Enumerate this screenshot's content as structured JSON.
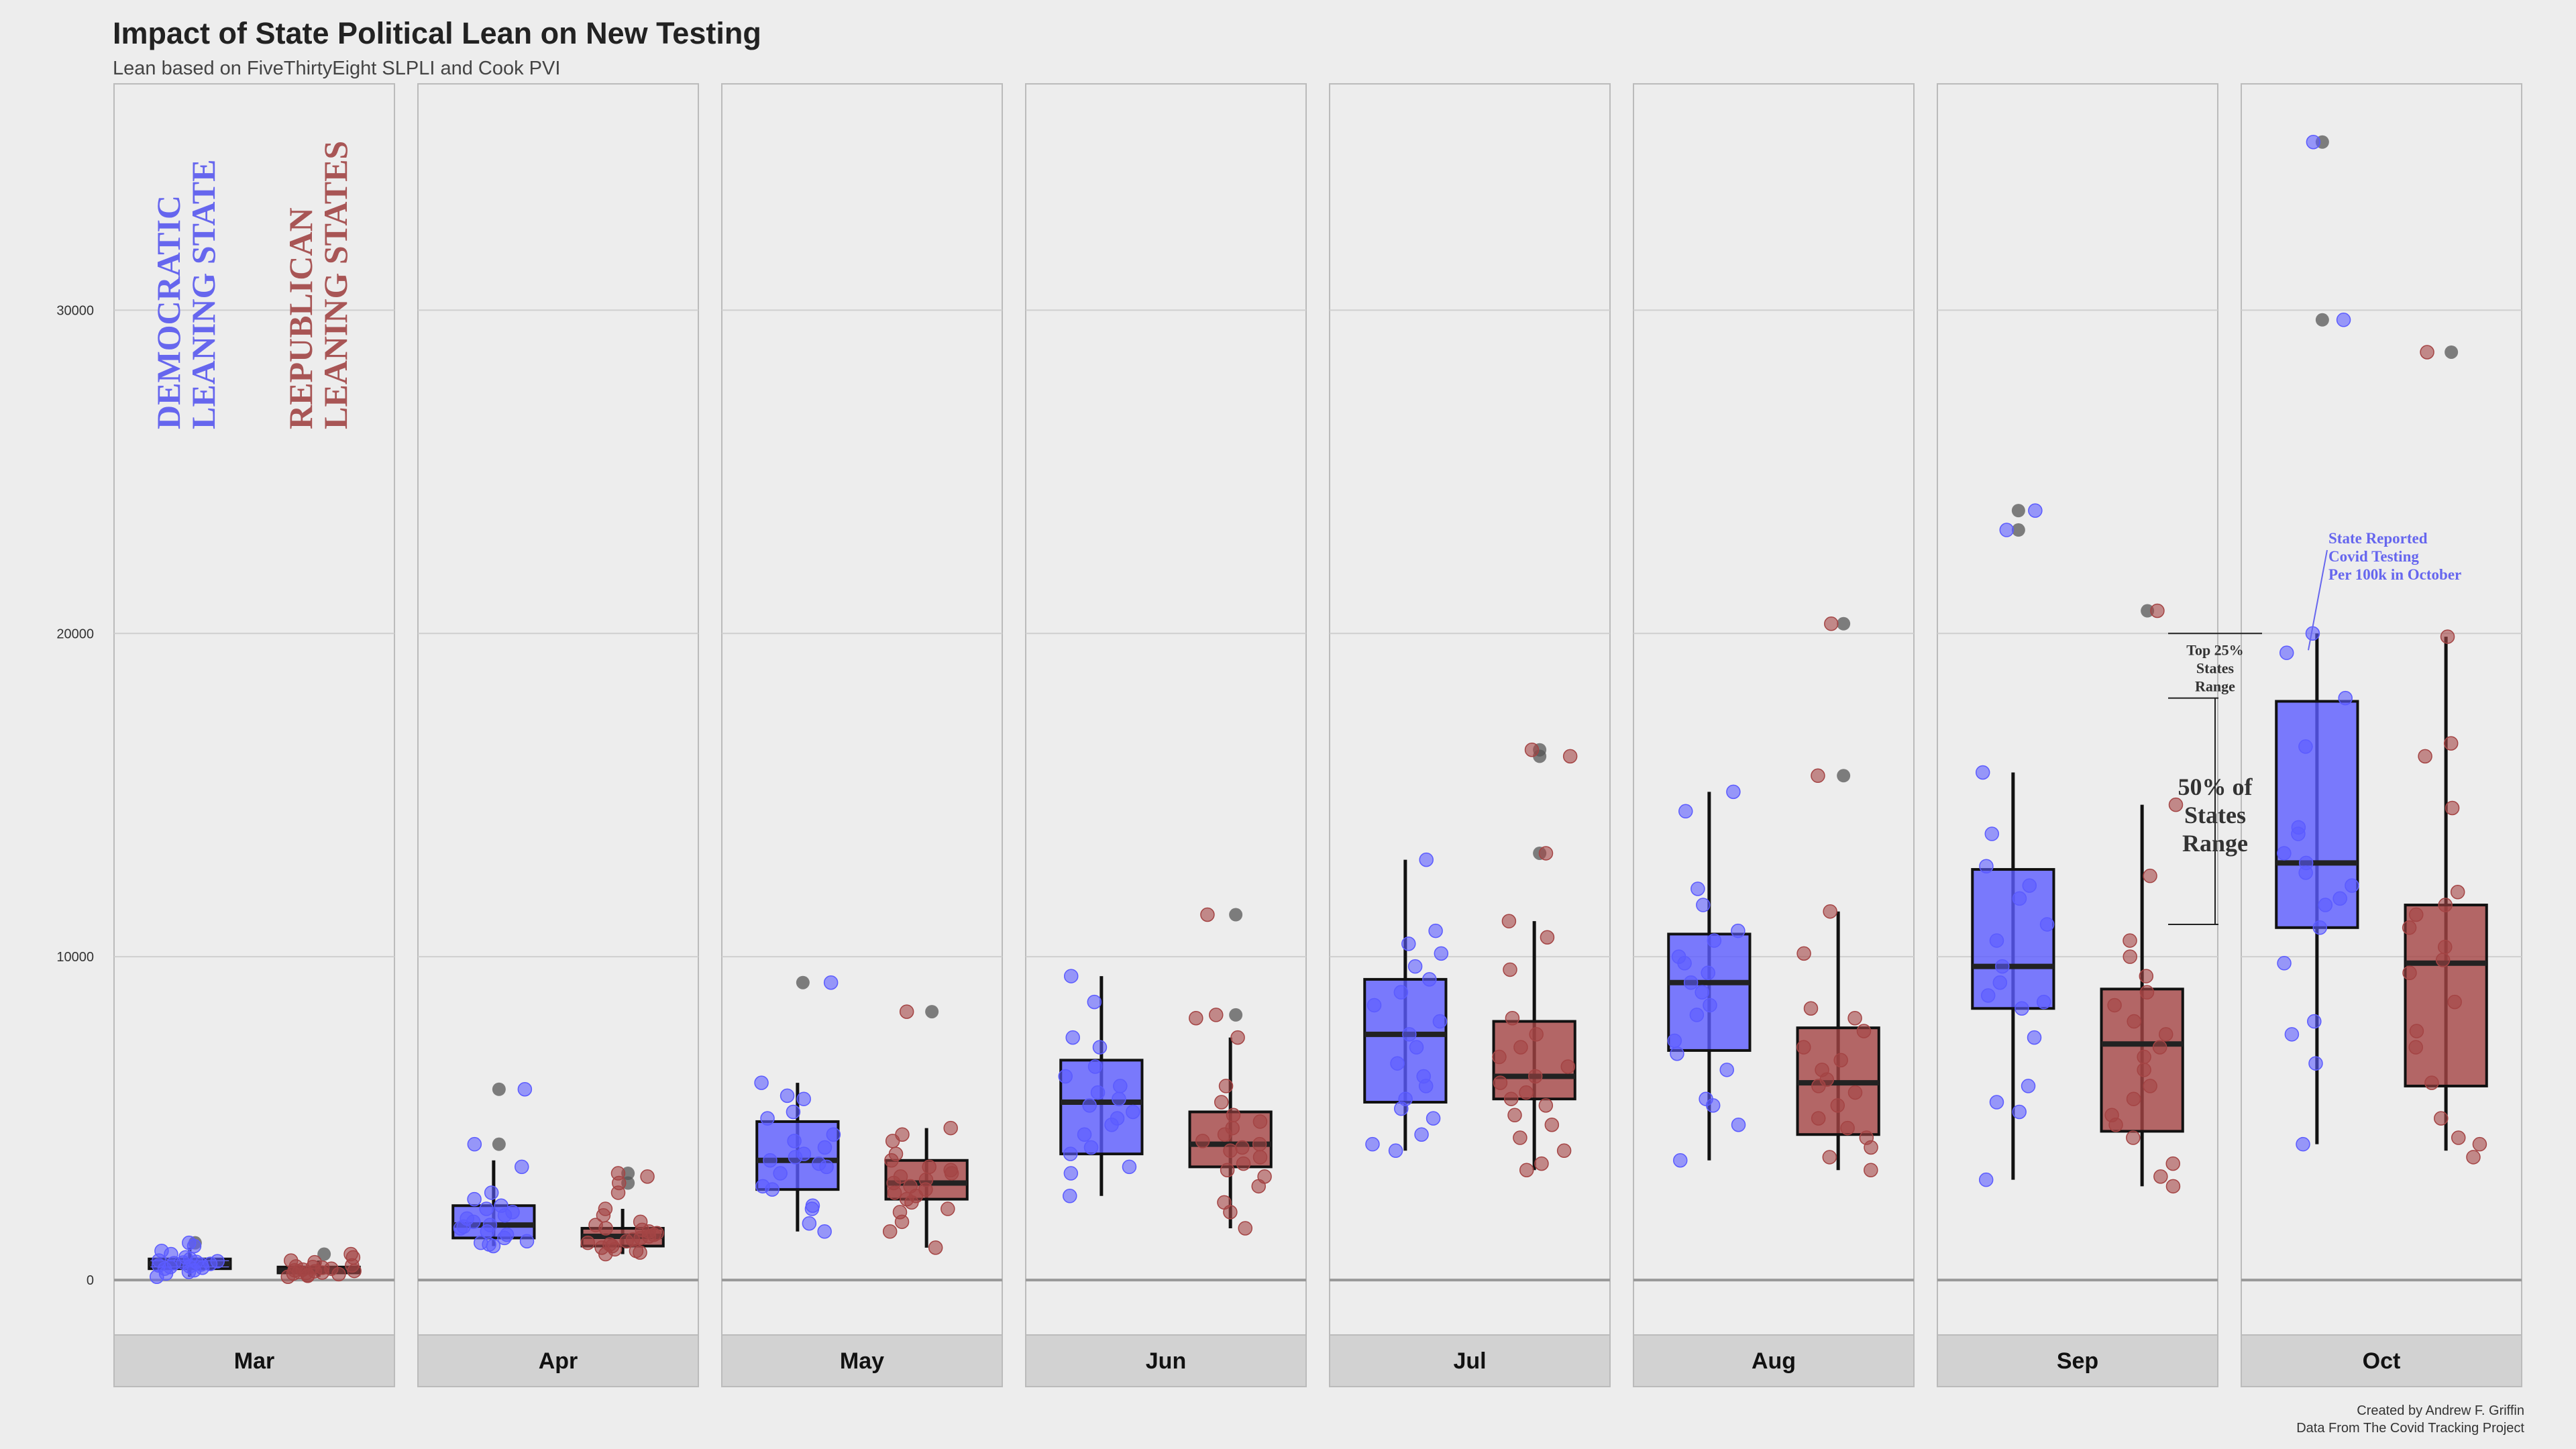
{
  "title": "Impact of State Political Lean on New Testing",
  "subtitle": "Lean based on FiveThirtyEight SLPLI and Cook PVI",
  "caption": {
    "line1": "Created by Andrew F. Griffin",
    "line2": "Data From The Covid Tracking Project"
  },
  "colors": {
    "democratic": "#5b5bff",
    "republican": "#a44444",
    "dem_label": "#6666ee",
    "rep_label": "#a85555",
    "outlier": "#555555",
    "panel_bg": "#ededed",
    "strip_bg": "#d2d2d2",
    "grid": "#cfcfcf"
  },
  "panel_labels": {
    "democratic": [
      "DEMOCRATIC",
      "LEANING STATE"
    ],
    "republican": [
      "REPUBLICAN",
      "LEANING STATES"
    ]
  },
  "annotations": {
    "oct_testing": [
      "State Reported",
      "Covid Testing",
      "Per 100k in October"
    ],
    "top25": [
      "Top 25%",
      "States",
      "Range"
    ],
    "fifty": [
      "50% of",
      "States",
      "Range"
    ]
  },
  "chart_data": {
    "type": "boxplot",
    "title": "Impact of State Political Lean on New Testing",
    "xlabel": "",
    "ylabel": "",
    "ylim": [
      -1700,
      37000
    ],
    "yticks": [
      0,
      10000,
      20000,
      30000
    ],
    "ytick_labels": [
      "0",
      "10000",
      "20000",
      "30000"
    ],
    "grid": true,
    "facets": [
      "Mar",
      "Apr",
      "May",
      "Jun",
      "Jul",
      "Aug",
      "Sep",
      "Oct"
    ],
    "groups": [
      "Democratic Leaning",
      "Republican Leaning"
    ],
    "series": [
      {
        "month": "Mar",
        "dem": {
          "min": 100,
          "q1": 350,
          "median": 500,
          "q3": 650,
          "max": 1000,
          "outliers": [
            1150
          ],
          "points": [
            1150,
            1050,
            900,
            800,
            700,
            650,
            600,
            580,
            560,
            540,
            520,
            500,
            480,
            450,
            420,
            400,
            380,
            350,
            300,
            250,
            200,
            100
          ]
        },
        "rep": {
          "min": 100,
          "q1": 220,
          "median": 300,
          "q3": 400,
          "max": 600,
          "outliers": [
            800
          ],
          "points": [
            800,
            700,
            600,
            550,
            450,
            420,
            400,
            380,
            350,
            320,
            300,
            280,
            270,
            250,
            230,
            220,
            200,
            180,
            150,
            130,
            100
          ]
        }
      },
      {
        "month": "Apr",
        "dem": {
          "min": 1050,
          "q1": 1300,
          "median": 1700,
          "q3": 2300,
          "max": 3700,
          "outliers": [
            5900,
            4200
          ],
          "points": [
            5900,
            4200,
            3500,
            2700,
            2500,
            2300,
            2200,
            2100,
            2000,
            1900,
            1800,
            1700,
            1650,
            1600,
            1500,
            1400,
            1300,
            1200,
            1150,
            1100,
            1050
          ]
        },
        "rep": {
          "min": 800,
          "q1": 1050,
          "median": 1350,
          "q3": 1600,
          "max": 2200,
          "outliers": [
            3300,
            3000
          ],
          "points": [
            3300,
            3200,
            3000,
            2700,
            2200,
            2000,
            1800,
            1700,
            1600,
            1550,
            1500,
            1450,
            1400,
            1350,
            1300,
            1250,
            1200,
            1150,
            1100,
            1050,
            1000,
            950,
            900,
            850,
            800
          ]
        }
      },
      {
        "month": "May",
        "dem": {
          "min": 1500,
          "q1": 2800,
          "median": 3700,
          "q3": 4900,
          "max": 6100,
          "outliers": [
            9200
          ],
          "points": [
            9200,
            6100,
            5700,
            5600,
            5200,
            5000,
            4500,
            4300,
            4100,
            3900,
            3800,
            3700,
            3600,
            3500,
            3300,
            2900,
            2800,
            2300,
            2200,
            1750,
            1500
          ]
        },
        "rep": {
          "min": 1000,
          "q1": 2500,
          "median": 3000,
          "q3": 3700,
          "max": 4700,
          "outliers": [
            8300
          ],
          "points": [
            8300,
            4700,
            4500,
            4300,
            3900,
            3700,
            3500,
            3400,
            3300,
            3200,
            3100,
            3000,
            2900,
            2800,
            2700,
            2600,
            2500,
            2400,
            2200,
            2100,
            1800,
            1500,
            1000
          ]
        }
      },
      {
        "month": "Jun",
        "dem": {
          "min": 2600,
          "q1": 3900,
          "median": 5500,
          "q3": 6800,
          "max": 9400,
          "outliers": [],
          "points": [
            9400,
            8600,
            7500,
            7200,
            6600,
            6300,
            6000,
            5800,
            5600,
            5400,
            5200,
            5000,
            4800,
            4500,
            4100,
            3900,
            3500,
            3300,
            2600
          ]
        },
        "rep": {
          "min": 1600,
          "q1": 3500,
          "median": 4200,
          "q3": 5200,
          "max": 7500,
          "outliers": [
            11300,
            8200
          ],
          "points": [
            11300,
            8200,
            8100,
            7500,
            6000,
            5500,
            5100,
            4900,
            4700,
            4500,
            4300,
            4200,
            4100,
            4000,
            3800,
            3600,
            3400,
            3200,
            2900,
            2400,
            2100,
            1600
          ]
        }
      },
      {
        "month": "Jul",
        "dem": {
          "min": 4000,
          "q1": 5500,
          "median": 7600,
          "q3": 9300,
          "max": 13000,
          "outliers": [],
          "points": [
            13000,
            10800,
            10400,
            10100,
            9700,
            9300,
            8900,
            8500,
            8000,
            7600,
            7200,
            6700,
            6300,
            6000,
            5600,
            5300,
            5000,
            4500,
            4200,
            4000
          ]
        },
        "rep": {
          "min": 3400,
          "q1": 5600,
          "median": 6300,
          "q3": 8000,
          "max": 11100,
          "outliers": [
            16400,
            16200,
            13200
          ],
          "points": [
            16400,
            16200,
            13200,
            11100,
            10600,
            9600,
            8100,
            7600,
            7200,
            6900,
            6600,
            6300,
            6100,
            5800,
            5600,
            5400,
            5100,
            4800,
            4400,
            4000,
            3600,
            3400
          ]
        }
      },
      {
        "month": "Aug",
        "dem": {
          "min": 3700,
          "q1": 7100,
          "median": 9200,
          "q3": 10700,
          "max": 15100,
          "outliers": [],
          "points": [
            15100,
            14500,
            12100,
            11600,
            10800,
            10500,
            10000,
            9800,
            9500,
            9200,
            8900,
            8500,
            8200,
            7400,
            7000,
            6500,
            5600,
            5400,
            4800,
            3700
          ]
        },
        "rep": {
          "min": 3400,
          "q1": 4500,
          "median": 6100,
          "q3": 7800,
          "max": 11400,
          "outliers": [
            20300,
            15600
          ],
          "points": [
            20300,
            15600,
            11400,
            10100,
            8400,
            8100,
            7700,
            7200,
            6800,
            6500,
            6200,
            6000,
            5800,
            5400,
            5000,
            4700,
            4400,
            4100,
            3800,
            3400
          ]
        }
      },
      {
        "month": "Sep",
        "dem": {
          "min": 3100,
          "q1": 8400,
          "median": 9700,
          "q3": 12700,
          "max": 15700,
          "outliers": [
            23800,
            23200
          ],
          "points": [
            23800,
            23200,
            15700,
            13800,
            12800,
            12200,
            11800,
            11000,
            10500,
            9700,
            9200,
            8800,
            8600,
            8400,
            7500,
            6000,
            5500,
            5200,
            3100
          ]
        },
        "rep": {
          "min": 2900,
          "q1": 4600,
          "median": 7300,
          "q3": 9000,
          "max": 14700,
          "outliers": [
            20700
          ],
          "points": [
            20700,
            14700,
            12500,
            10500,
            10000,
            9400,
            8900,
            8500,
            8000,
            7600,
            7200,
            6900,
            6500,
            6000,
            5600,
            5100,
            4800,
            4400,
            3600,
            3200,
            2900
          ]
        }
      },
      {
        "month": "Oct",
        "dem": {
          "min": 4200,
          "q1": 10900,
          "median": 12900,
          "q3": 17900,
          "max": 20000,
          "outliers": [
            35200,
            29700
          ],
          "points": [
            35200,
            29700,
            20000,
            19400,
            18000,
            16500,
            14000,
            13800,
            13200,
            12900,
            12600,
            12200,
            11800,
            11600,
            10900,
            9800,
            8000,
            7600,
            6700,
            4200
          ]
        },
        "rep": {
          "min": 4000,
          "q1": 6000,
          "median": 9800,
          "q3": 11600,
          "max": 19900,
          "outliers": [
            28700
          ],
          "points": [
            28700,
            19900,
            16600,
            16200,
            14600,
            12000,
            11600,
            11300,
            10900,
            10300,
            9900,
            9500,
            8600,
            7700,
            7200,
            6100,
            5000,
            4400,
            4200,
            3800
          ]
        }
      }
    ]
  }
}
